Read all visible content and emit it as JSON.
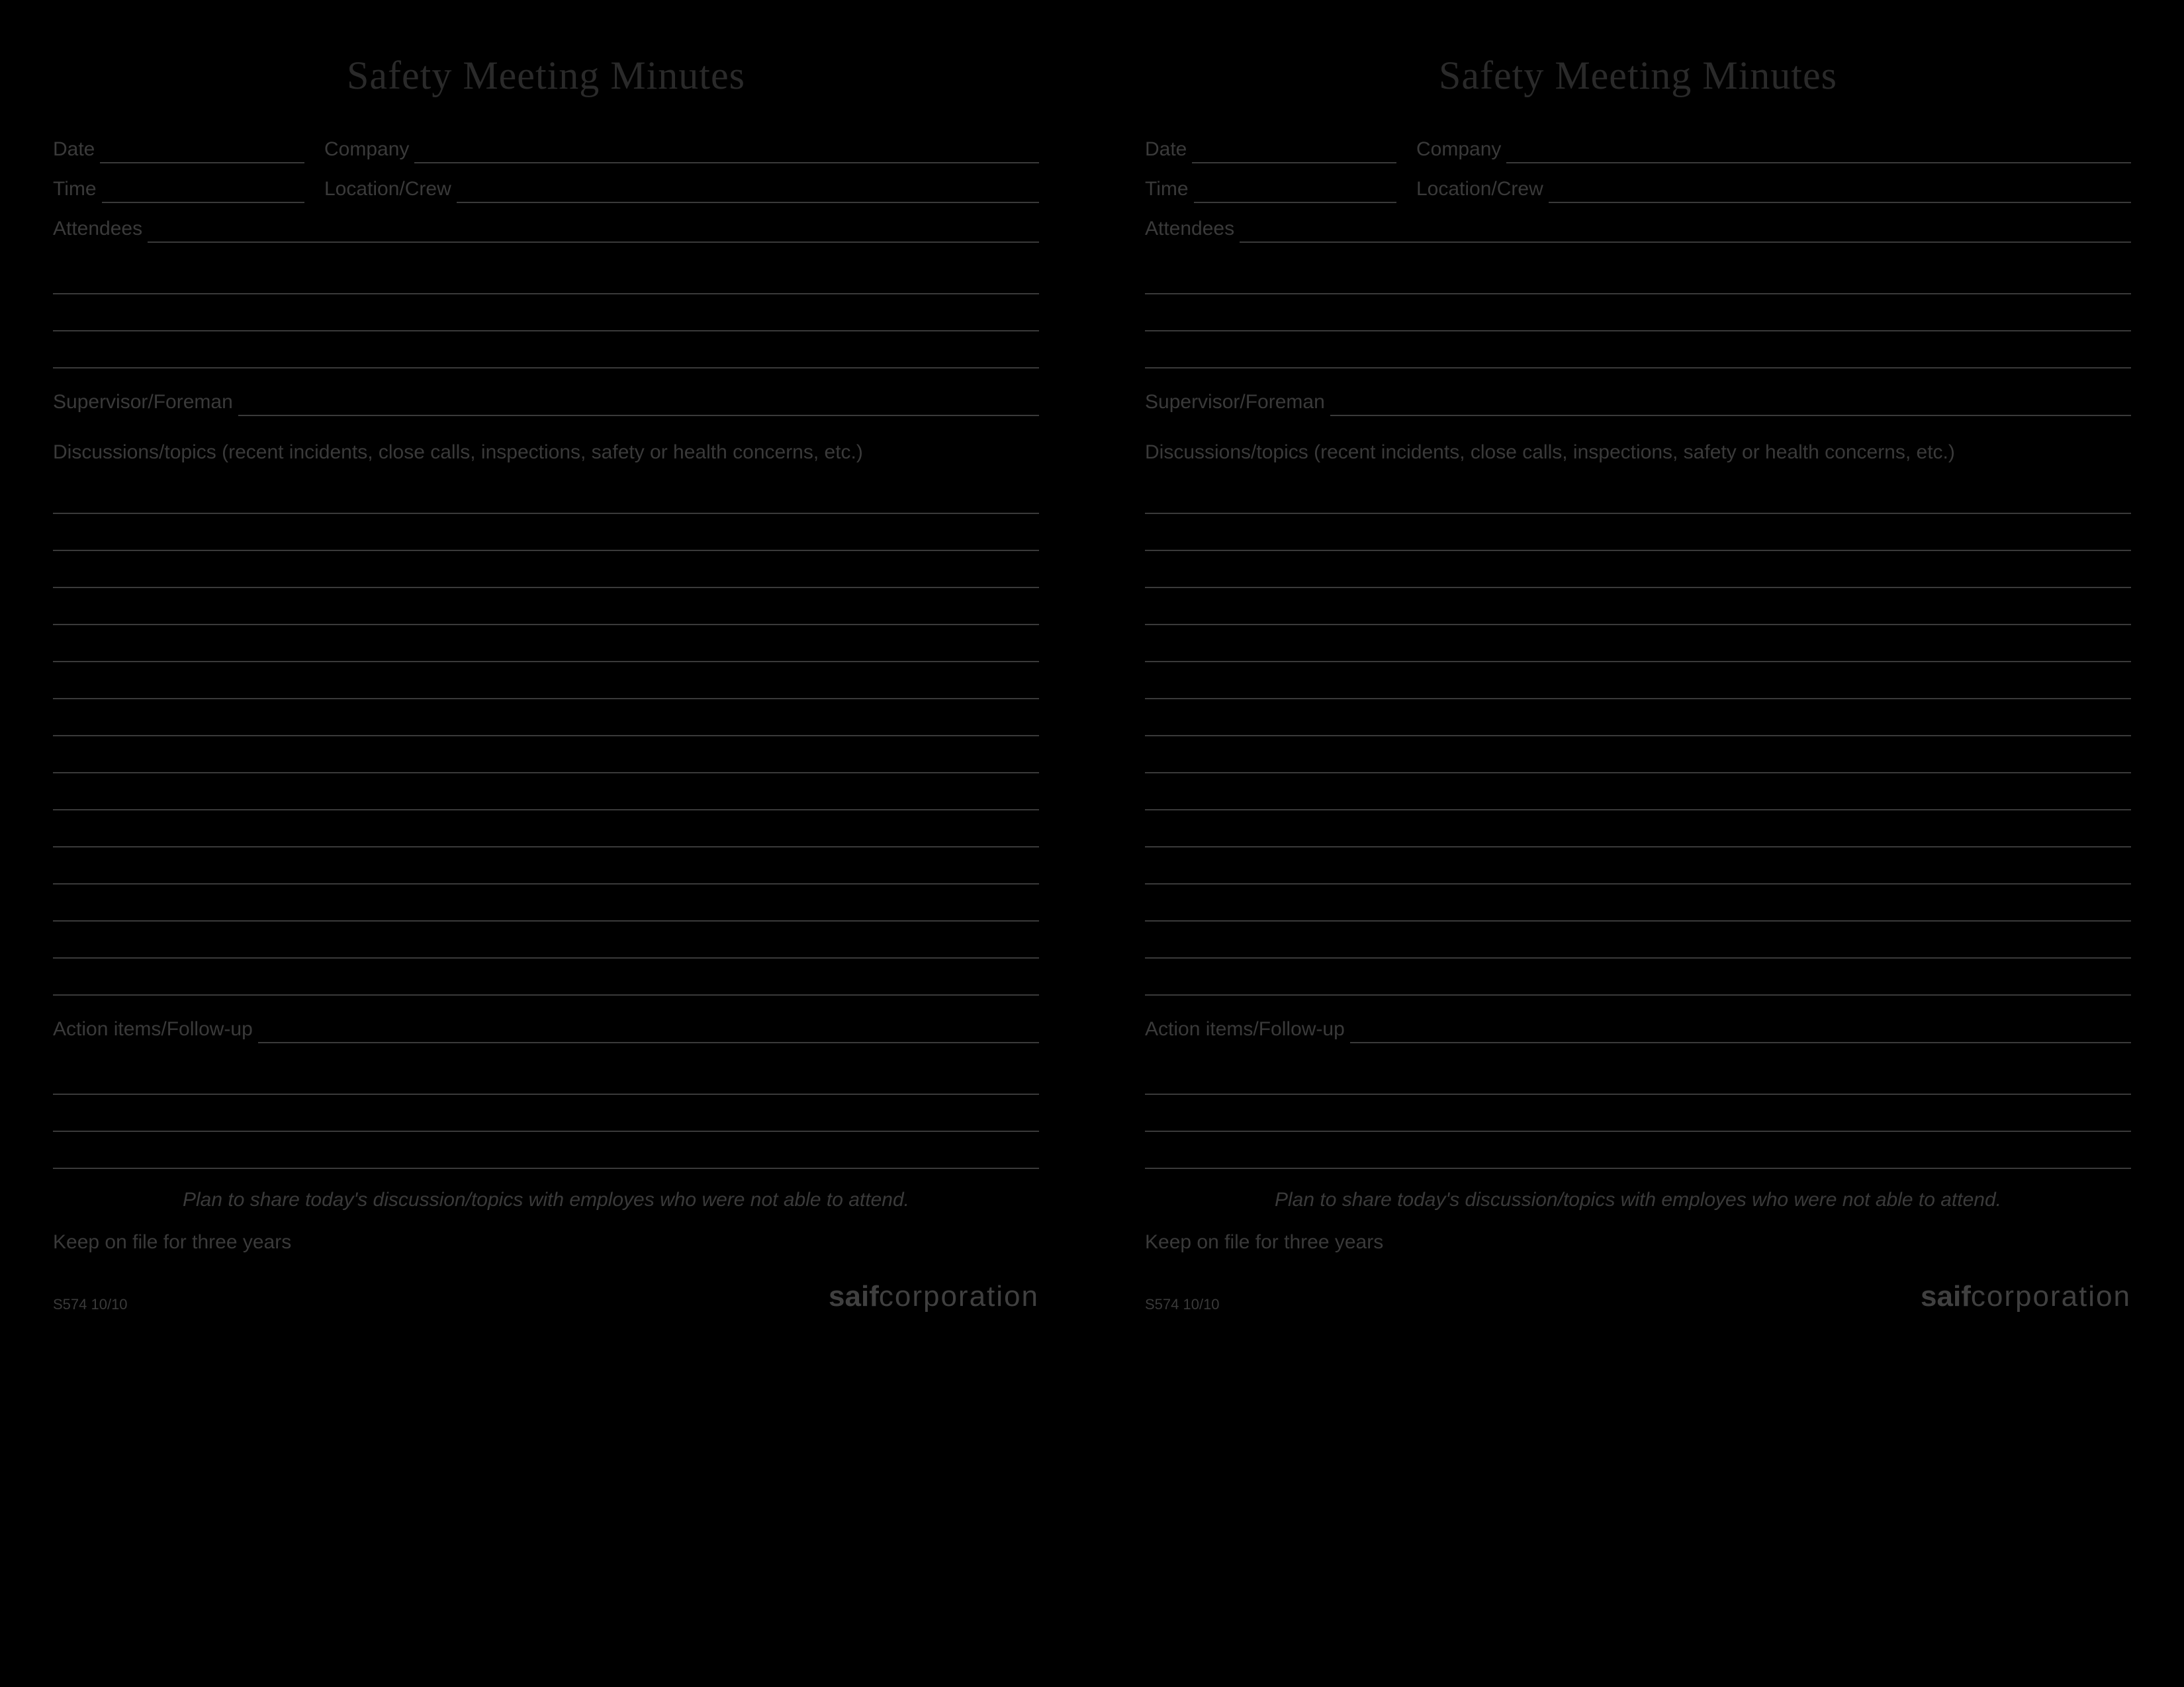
{
  "form": {
    "title": "Safety Meeting Minutes",
    "fields": {
      "date": "Date",
      "company": "Company",
      "time": "Time",
      "location": "Location/Crew",
      "attendees": "Attendees",
      "supervisor": "Supervisor/Foreman",
      "discussions": "Discussions/topics (recent incidents, close calls, inspections, safety or health concerns, etc.)",
      "action": "Action items/Follow-up"
    },
    "notes": {
      "share": "Plan to share today's discussion/topics with employes who were not able to attend.",
      "keep": "Keep on file for three years"
    },
    "footer": {
      "formId": "S574  10/10",
      "brandBold": "saif",
      "brandLight": "corporation"
    }
  },
  "layout": {
    "attendeesExtraLines": 3,
    "discussionLines": 14,
    "actionExtraLines": 3
  },
  "colors": {
    "background": "#000000",
    "text": "#3a3a3a",
    "line": "#3a3a3a"
  }
}
